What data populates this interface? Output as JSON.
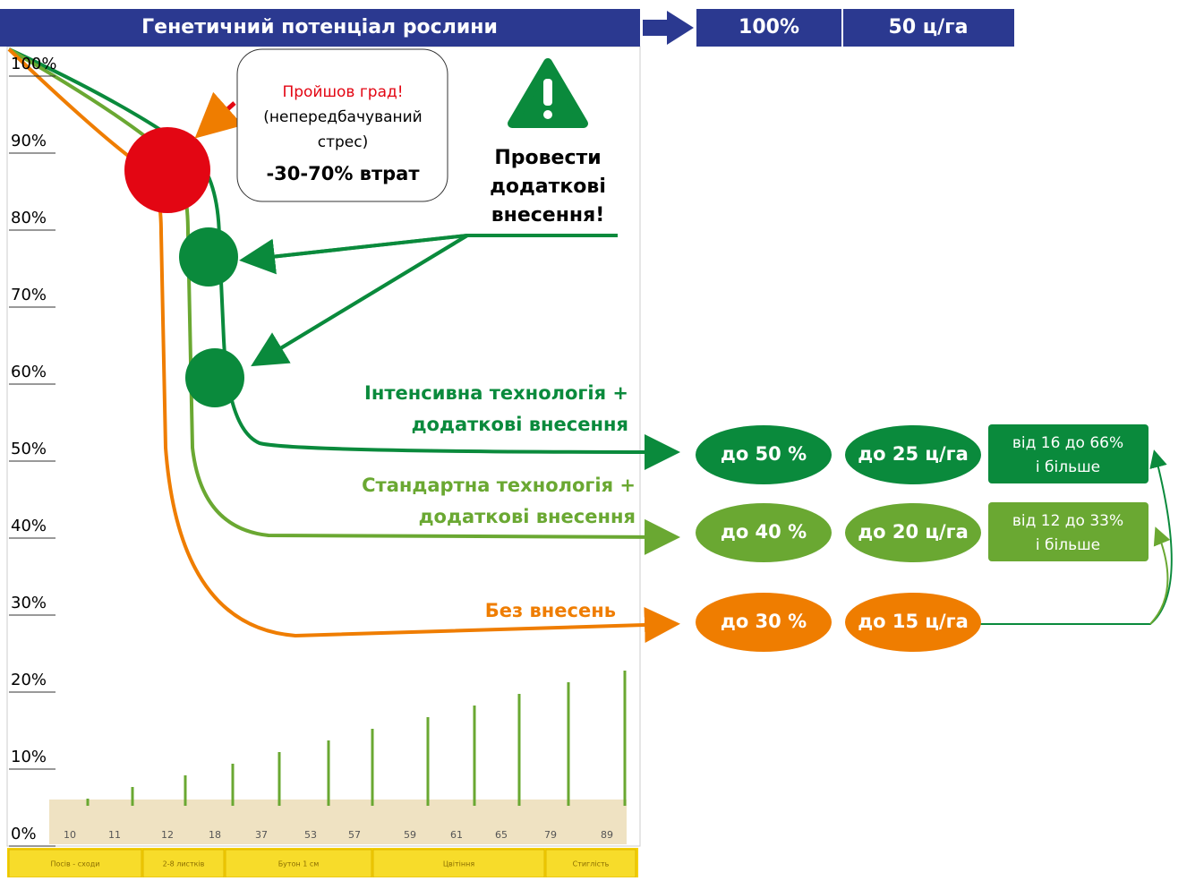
{
  "header": {
    "title": "Генетичний потенціал рослини",
    "percent": "100%",
    "yield": "50 ц/га"
  },
  "y_axis": [
    "100%",
    "90%",
    "80%",
    "70%",
    "60%",
    "50%",
    "40%",
    "30%",
    "20%",
    "10%",
    "0%"
  ],
  "callout": {
    "alert": "Пройшов град!",
    "lines": [
      "(непередбачуваний",
      "стрес)"
    ],
    "loss": "-30-70% втрат"
  },
  "action": {
    "lines": [
      "Провести",
      "додаткові",
      "внесення!"
    ]
  },
  "series_labels": {
    "intensive": [
      "Інтенсивна технологія +",
      "додаткові внесення"
    ],
    "standard": [
      "Стандартна технологія +",
      "додаткові внесення"
    ],
    "none": [
      "Без внесень"
    ]
  },
  "results": [
    {
      "percent": "до 50 %",
      "yield": "до 25 ц/га",
      "gain": [
        "від 16 до 66%",
        "і більше"
      ]
    },
    {
      "percent": "до 40 %",
      "yield": "до 20 ц/га",
      "gain": [
        "від 12 до 33%",
        "і більше"
      ]
    },
    {
      "percent": "до 30 %",
      "yield": "до 15 ц/га"
    }
  ],
  "stages": [
    "10",
    "11",
    "12",
    "18",
    "37",
    "53",
    "57",
    "59",
    "61",
    "65",
    "79",
    "89"
  ],
  "phases": [
    "Посів - сходи",
    "2-8 листків",
    "Бутон 1 см",
    "Цвітіння",
    "Стиглість"
  ]
}
